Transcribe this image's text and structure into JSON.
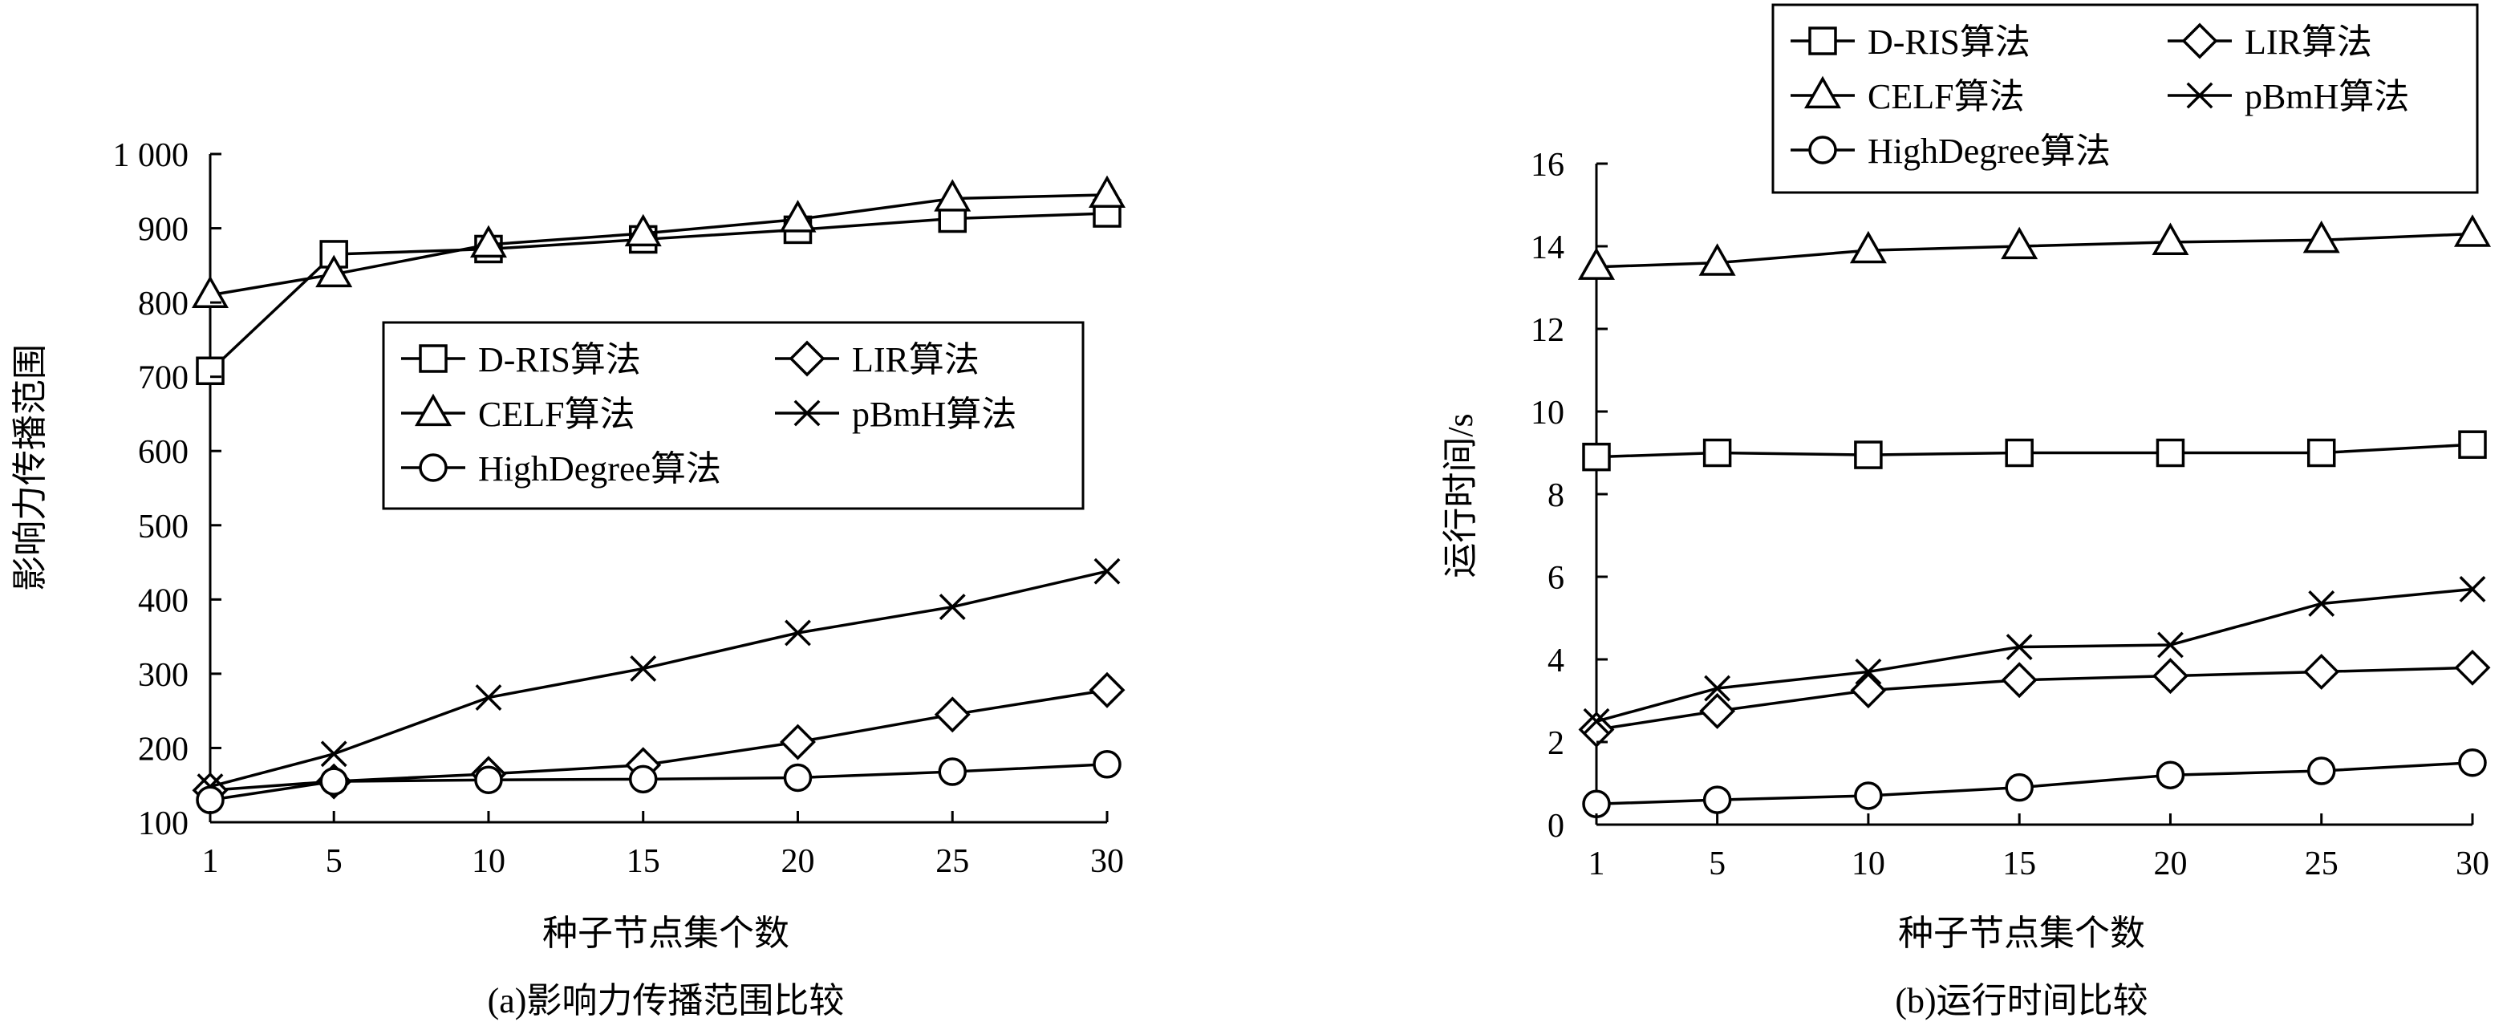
{
  "chart_data": [
    {
      "type": "line",
      "caption": "(a)影响力传播范围比较",
      "xlabel": "种子节点集个数",
      "ylabel": "影响力传播范围",
      "x": [
        1,
        5,
        10,
        15,
        20,
        25,
        30
      ],
      "xticks": [
        "1",
        "5",
        "10",
        "15",
        "20",
        "25",
        "30"
      ],
      "ylim": [
        100,
        1000
      ],
      "yticks": [
        "100",
        "200",
        "300",
        "400",
        "500",
        "600",
        "700",
        "800",
        "900",
        "1 000"
      ],
      "ytick_values": [
        100,
        200,
        300,
        400,
        500,
        600,
        700,
        800,
        900,
        1000
      ],
      "grid": false,
      "legend_position": "center",
      "series": [
        {
          "name": "D-RIS算法",
          "marker": "square",
          "values": [
            708,
            865,
            872,
            885,
            898,
            913,
            920
          ]
        },
        {
          "name": "LIR算法",
          "marker": "diamond",
          "values": [
            143,
            155,
            165,
            177,
            208,
            245,
            278
          ]
        },
        {
          "name": "CELF算法",
          "marker": "triangle",
          "values": [
            810,
            838,
            878,
            893,
            912,
            940,
            945
          ]
        },
        {
          "name": "pBmH算法",
          "marker": "x",
          "values": [
            148,
            192,
            268,
            307,
            355,
            390,
            438
          ]
        },
        {
          "name": "HighDegree算法",
          "marker": "circle",
          "values": [
            130,
            155,
            157,
            158,
            160,
            168,
            178
          ]
        }
      ]
    },
    {
      "type": "line",
      "caption": "(b)运行时间比较",
      "xlabel": "种子节点集个数",
      "ylabel": "运行时间/s",
      "x": [
        1,
        5,
        10,
        15,
        20,
        25,
        30
      ],
      "xticks": [
        "1",
        "5",
        "10",
        "15",
        "20",
        "25",
        "30"
      ],
      "ylim": [
        0,
        16
      ],
      "yticks": [
        "0",
        "2",
        "4",
        "6",
        "8",
        "10",
        "12",
        "14",
        "16"
      ],
      "ytick_values": [
        0,
        2,
        4,
        6,
        8,
        10,
        12,
        14,
        16
      ],
      "grid": false,
      "legend_position": "top",
      "series": [
        {
          "name": "D-RIS算法",
          "marker": "square",
          "values": [
            8.9,
            9.0,
            8.95,
            9.0,
            9.0,
            9.0,
            9.2
          ]
        },
        {
          "name": "LIR算法",
          "marker": "diamond",
          "values": [
            2.3,
            2.75,
            3.25,
            3.5,
            3.6,
            3.7,
            3.8
          ]
        },
        {
          "name": "CELF算法",
          "marker": "triangle",
          "values": [
            13.5,
            13.6,
            13.9,
            14.0,
            14.1,
            14.15,
            14.3
          ]
        },
        {
          "name": "pBmH算法",
          "marker": "x",
          "values": [
            2.5,
            3.3,
            3.7,
            4.3,
            4.35,
            5.35,
            5.7
          ]
        },
        {
          "name": "HighDegree算法",
          "marker": "circle",
          "values": [
            0.5,
            0.6,
            0.7,
            0.9,
            1.2,
            1.3,
            1.5
          ]
        }
      ]
    }
  ]
}
